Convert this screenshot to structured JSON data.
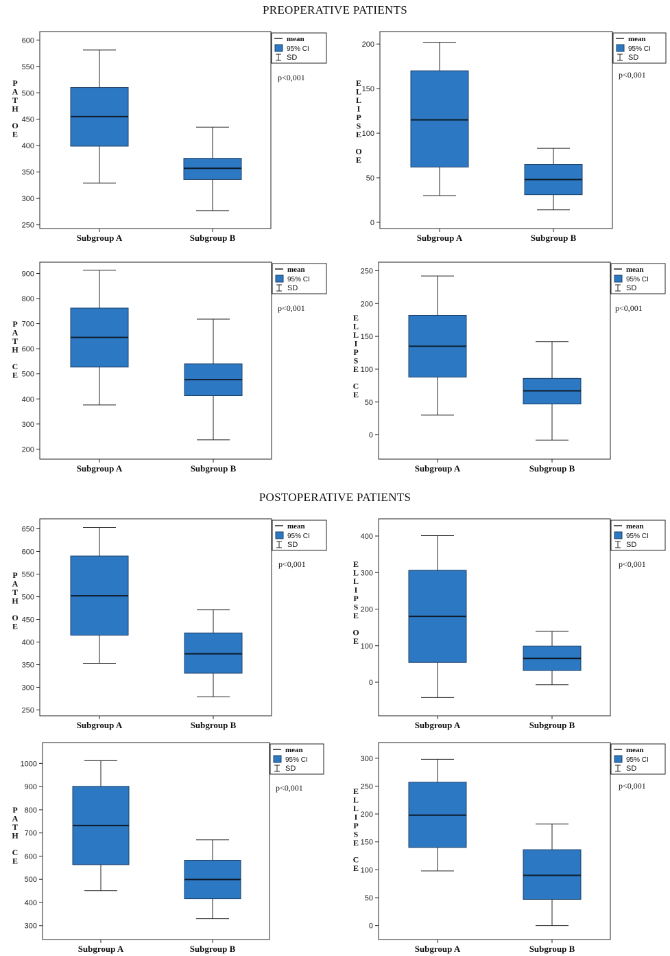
{
  "sections": [
    {
      "title": "PREOPERATIVE PATIENTS"
    },
    {
      "title": "POSTOPERATIVE PATIENTS"
    }
  ],
  "legend": {
    "mean": "mean",
    "ci": "95% CI",
    "sd": "SD"
  },
  "colors": {
    "box": "#2d78c2",
    "box_stroke": "#1b3f66",
    "median": "#0d1b2a",
    "axis": "#222222"
  },
  "chart_data": [
    {
      "type": "box",
      "section": "PREOPERATIVE PATIENTS",
      "ylabel": "PATH OE",
      "categories": [
        "Subgroup A",
        "Subgroup B"
      ],
      "yticks": [
        250,
        300,
        350,
        400,
        450,
        500,
        550,
        600
      ],
      "ylim": [
        243,
        616
      ],
      "p_value": "p<0,001",
      "boxes": [
        {
          "sd_low": 329,
          "ci_low": 399,
          "mean": 455,
          "ci_high": 510,
          "sd_high": 581
        },
        {
          "sd_low": 277,
          "ci_low": 336,
          "mean": 357,
          "ci_high": 376,
          "sd_high": 435
        }
      ]
    },
    {
      "type": "box",
      "section": "PREOPERATIVE PATIENTS",
      "ylabel": "ELLIPSE OE",
      "categories": [
        "Subgroup A",
        "Subgroup B"
      ],
      "yticks": [
        0,
        50,
        100,
        150,
        200
      ],
      "ylim": [
        -7,
        214
      ],
      "p_value": "p<0,001",
      "boxes": [
        {
          "sd_low": 30,
          "ci_low": 62,
          "mean": 115,
          "ci_high": 170,
          "sd_high": 202
        },
        {
          "sd_low": 14,
          "ci_low": 31,
          "mean": 48,
          "ci_high": 65,
          "sd_high": 83
        }
      ]
    },
    {
      "type": "box",
      "section": "PREOPERATIVE PATIENTS",
      "ylabel": "PATH CE",
      "categories": [
        "Subgroup A",
        "Subgroup B"
      ],
      "yticks": [
        200,
        300,
        400,
        500,
        600,
        700,
        800,
        900
      ],
      "ylim": [
        160,
        945
      ],
      "p_value": "p<0,001",
      "boxes": [
        {
          "sd_low": 376,
          "ci_low": 527,
          "mean": 645,
          "ci_high": 762,
          "sd_high": 913
        },
        {
          "sd_low": 237,
          "ci_low": 413,
          "mean": 477,
          "ci_high": 540,
          "sd_high": 718
        }
      ]
    },
    {
      "type": "box",
      "section": "PREOPERATIVE PATIENTS",
      "ylabel": "ELLIPSE CE",
      "categories": [
        "Subgroup A",
        "Subgroup B"
      ],
      "yticks": [
        0,
        50,
        100,
        150,
        200,
        250
      ],
      "ylim": [
        -37,
        263
      ],
      "p_value": "p<0,001",
      "boxes": [
        {
          "sd_low": 30,
          "ci_low": 88,
          "mean": 135,
          "ci_high": 182,
          "sd_high": 242
        },
        {
          "sd_low": -8,
          "ci_low": 47,
          "mean": 67,
          "ci_high": 86,
          "sd_high": 142
        }
      ]
    },
    {
      "type": "box",
      "section": "POSTOPERATIVE PATIENTS",
      "ylabel": "PATH OE",
      "categories": [
        "Subgroup A",
        "Subgroup B"
      ],
      "yticks": [
        250,
        300,
        350,
        400,
        450,
        500,
        550,
        600,
        650
      ],
      "ylim": [
        237,
        672
      ],
      "p_value": "p<0,001",
      "boxes": [
        {
          "sd_low": 353,
          "ci_low": 415,
          "mean": 502,
          "ci_high": 590,
          "sd_high": 653
        },
        {
          "sd_low": 279,
          "ci_low": 331,
          "mean": 374,
          "ci_high": 420,
          "sd_high": 471
        }
      ]
    },
    {
      "type": "box",
      "section": "POSTOPERATIVE PATIENTS",
      "ylabel": "ELLIPSE OE",
      "categories": [
        "Subgroup A",
        "Subgroup B"
      ],
      "yticks": [
        0,
        100,
        200,
        300,
        400
      ],
      "ylim": [
        -92,
        447
      ],
      "p_value": "p<0,001",
      "boxes": [
        {
          "sd_low": -42,
          "ci_low": 54,
          "mean": 180,
          "ci_high": 306,
          "sd_high": 401
        },
        {
          "sd_low": -7,
          "ci_low": 32,
          "mean": 65,
          "ci_high": 99,
          "sd_high": 139
        }
      ]
    },
    {
      "type": "box",
      "section": "POSTOPERATIVE PATIENTS",
      "ylabel": "PATH CE",
      "categories": [
        "Subgroup A",
        "Subgroup B"
      ],
      "yticks": [
        300,
        400,
        500,
        600,
        700,
        800,
        900,
        1000
      ],
      "ylim": [
        240,
        1090
      ],
      "p_value": "p<0,001",
      "boxes": [
        {
          "sd_low": 451,
          "ci_low": 563,
          "mean": 732,
          "ci_high": 901,
          "sd_high": 1012
        },
        {
          "sd_low": 330,
          "ci_low": 416,
          "mean": 499,
          "ci_high": 582,
          "sd_high": 670
        }
      ]
    },
    {
      "type": "box",
      "section": "POSTOPERATIVE PATIENTS",
      "ylabel": "ELLIPSE CE",
      "categories": [
        "Subgroup A",
        "Subgroup B"
      ],
      "yticks": [
        0,
        50,
        100,
        150,
        200,
        250,
        300
      ],
      "ylim": [
        -25,
        328
      ],
      "p_value": "p<0,001",
      "boxes": [
        {
          "sd_low": 98,
          "ci_low": 140,
          "mean": 198,
          "ci_high": 257,
          "sd_high": 298
        },
        {
          "sd_low": 0,
          "ci_low": 47,
          "mean": 90,
          "ci_high": 136,
          "sd_high": 182
        }
      ]
    }
  ]
}
